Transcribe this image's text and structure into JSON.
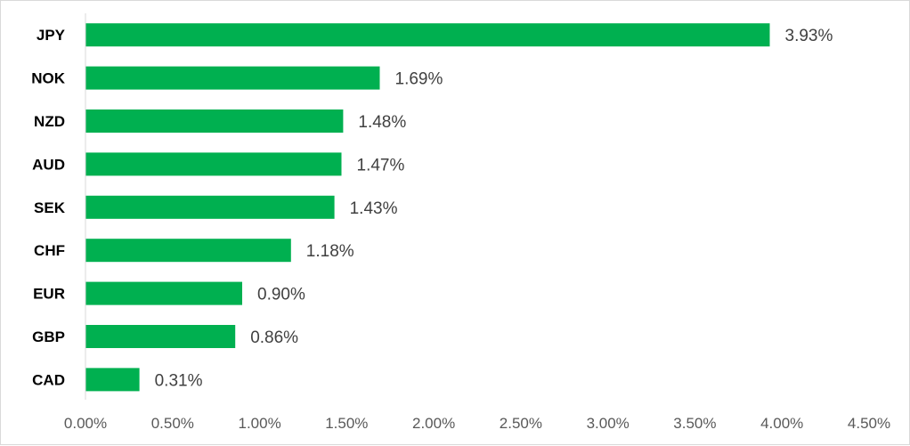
{
  "chart_data": {
    "type": "bar",
    "orientation": "horizontal",
    "title": "",
    "xlabel": "",
    "ylabel": "",
    "categories": [
      "JPY",
      "NOK",
      "NZD",
      "AUD",
      "SEK",
      "CHF",
      "EUR",
      "GBP",
      "CAD"
    ],
    "values": [
      3.93,
      1.69,
      1.48,
      1.47,
      1.43,
      1.18,
      0.9,
      0.86,
      0.31
    ],
    "value_labels": [
      "3.93%",
      "1.69%",
      "1.48%",
      "1.47%",
      "1.43%",
      "1.18%",
      "0.90%",
      "0.86%",
      "0.31%"
    ],
    "xlim": [
      0,
      4.5
    ],
    "x_ticks": [
      0,
      0.5,
      1.0,
      1.5,
      2.0,
      2.5,
      3.0,
      3.5,
      4.0,
      4.5
    ],
    "x_tick_labels": [
      "0.00%",
      "0.50%",
      "1.00%",
      "1.50%",
      "2.00%",
      "2.50%",
      "3.00%",
      "3.50%",
      "4.00%",
      "4.50%"
    ],
    "grid": false,
    "legend": "none",
    "bar_color": "#00b050",
    "axis_color": "#d9d9d9"
  }
}
